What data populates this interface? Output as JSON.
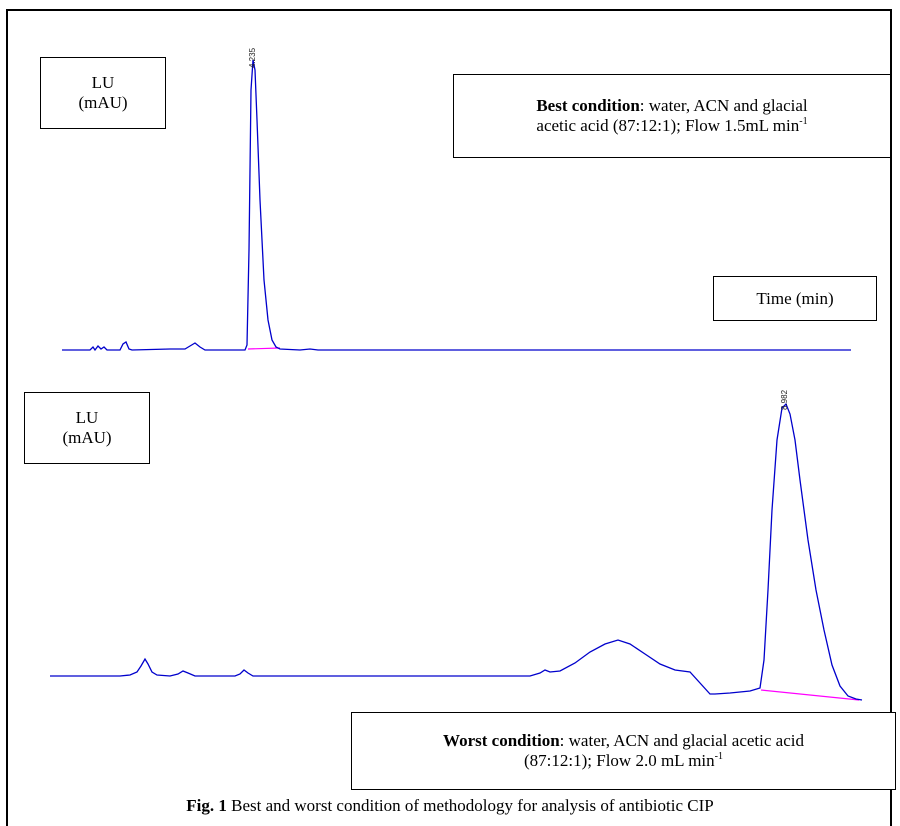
{
  "chart_data": [
    {
      "type": "line",
      "panel": "top",
      "ylabel_line1": "LU",
      "ylabel_line2": "(mAU)",
      "xlabel": "Time (min)",
      "condition": {
        "title": "Best condition",
        "text_line1": ": water, ACN and glacial",
        "text_line2": "acetic acid (87:12:1); Flow 1.5mL min",
        "unit_sup": "-1"
      },
      "peak_label": "4.235",
      "line_color": "#0000cc",
      "baseline_color": "#ff00ff"
    },
    {
      "type": "line",
      "panel": "bottom",
      "ylabel_line1": "LU",
      "ylabel_line2": "(mAU)",
      "condition": {
        "title": "Worst condition",
        "text_line1": ": water, ACN and glacial acetic acid",
        "text_line2": "(87:12:1); Flow 2.0 mL min",
        "unit_sup": "-1"
      },
      "peak_label": "8.982",
      "line_color": "#0000cc",
      "baseline_color": "#ff00ff"
    }
  ],
  "caption": {
    "prefix": "Fig. 1",
    "text": " Best and worst condition of methodology for analysis of antibiotic CIP"
  }
}
